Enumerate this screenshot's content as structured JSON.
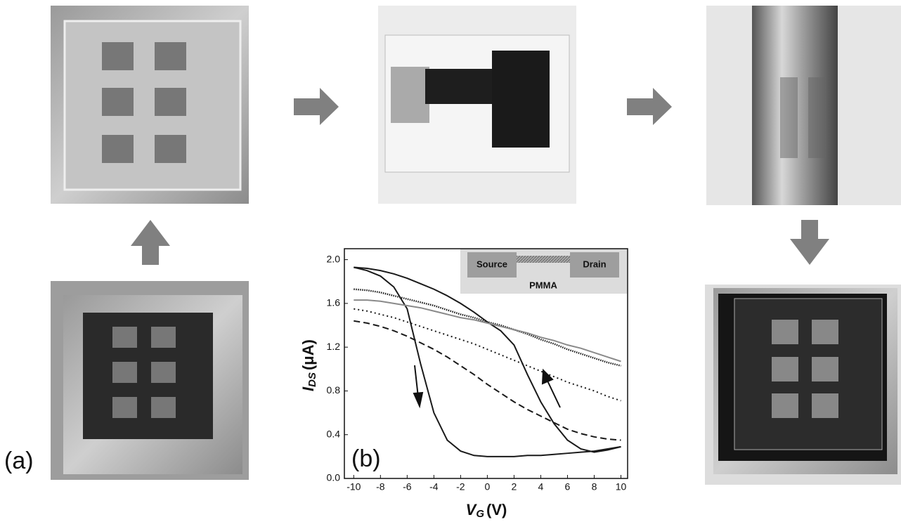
{
  "chart_data": {
    "type": "line",
    "panel_labels": [
      "(a)",
      "(b)"
    ],
    "x_label": {
      "symbol": "V",
      "subscript": "G",
      "unit": "(V)"
    },
    "y_label": {
      "symbol": "I",
      "subscript": "DS",
      "unit": "(μA)"
    },
    "inset": {
      "source": "Source",
      "drain": "Drain",
      "substrate": "PMMA"
    },
    "x": [
      -10,
      -9,
      -8,
      -7,
      -6,
      -5,
      -4,
      -3,
      -2,
      -1,
      0,
      1,
      2,
      3,
      4,
      5,
      6,
      7,
      8,
      9,
      10
    ],
    "series": [
      {
        "color": "#1a1a1a",
        "dash": "solid",
        "values": [
          1.93,
          1.9,
          1.85,
          1.75,
          1.55,
          1.05,
          0.6,
          0.35,
          0.25,
          0.21,
          0.2,
          0.2,
          0.2,
          0.21,
          0.21,
          0.22,
          0.23,
          0.24,
          0.25,
          0.27,
          0.29
        ]
      },
      {
        "color": "#1a1a1a",
        "dash": "solid",
        "values": [
          1.93,
          1.92,
          1.9,
          1.87,
          1.83,
          1.78,
          1.73,
          1.67,
          1.6,
          1.52,
          1.43,
          1.35,
          1.22,
          0.95,
          0.7,
          0.5,
          0.35,
          0.27,
          0.24,
          0.26,
          0.29
        ]
      },
      {
        "color": "#1a1a1a",
        "dash": "dense",
        "values": [
          1.73,
          1.72,
          1.7,
          1.67,
          1.64,
          1.61,
          1.58,
          1.54,
          1.5,
          1.47,
          1.43,
          1.4,
          1.36,
          1.32,
          1.27,
          1.23,
          1.18,
          1.14,
          1.1,
          1.06,
          1.03
        ]
      },
      {
        "color": "#8a8a8a",
        "dash": "solid",
        "values": [
          1.63,
          1.63,
          1.62,
          1.6,
          1.58,
          1.56,
          1.53,
          1.5,
          1.47,
          1.45,
          1.42,
          1.39,
          1.36,
          1.33,
          1.29,
          1.26,
          1.22,
          1.19,
          1.15,
          1.11,
          1.07
        ]
      },
      {
        "color": "#1a1a1a",
        "dash": "dotted",
        "values": [
          1.55,
          1.53,
          1.5,
          1.47,
          1.43,
          1.39,
          1.35,
          1.31,
          1.27,
          1.23,
          1.18,
          1.13,
          1.08,
          1.03,
          0.98,
          0.93,
          0.88,
          0.84,
          0.8,
          0.75,
          0.71
        ]
      },
      {
        "color": "#1a1a1a",
        "dash": "dashed",
        "values": [
          1.44,
          1.42,
          1.39,
          1.35,
          1.3,
          1.24,
          1.18,
          1.11,
          1.03,
          0.95,
          0.86,
          0.78,
          0.7,
          0.63,
          0.57,
          0.51,
          0.45,
          0.41,
          0.38,
          0.36,
          0.35
        ]
      }
    ],
    "xlim": [
      -10.7,
      10.5
    ],
    "ylim": [
      0,
      2.1
    ],
    "xticks": [
      -10,
      -8,
      -6,
      -4,
      -2,
      0,
      2,
      4,
      6,
      8,
      10
    ],
    "yticks": [
      {
        "value": 0,
        "label": "0.0"
      },
      0.4,
      0.8,
      1.2,
      1.6,
      {
        "value": 2,
        "label": "2.0"
      }
    ]
  }
}
